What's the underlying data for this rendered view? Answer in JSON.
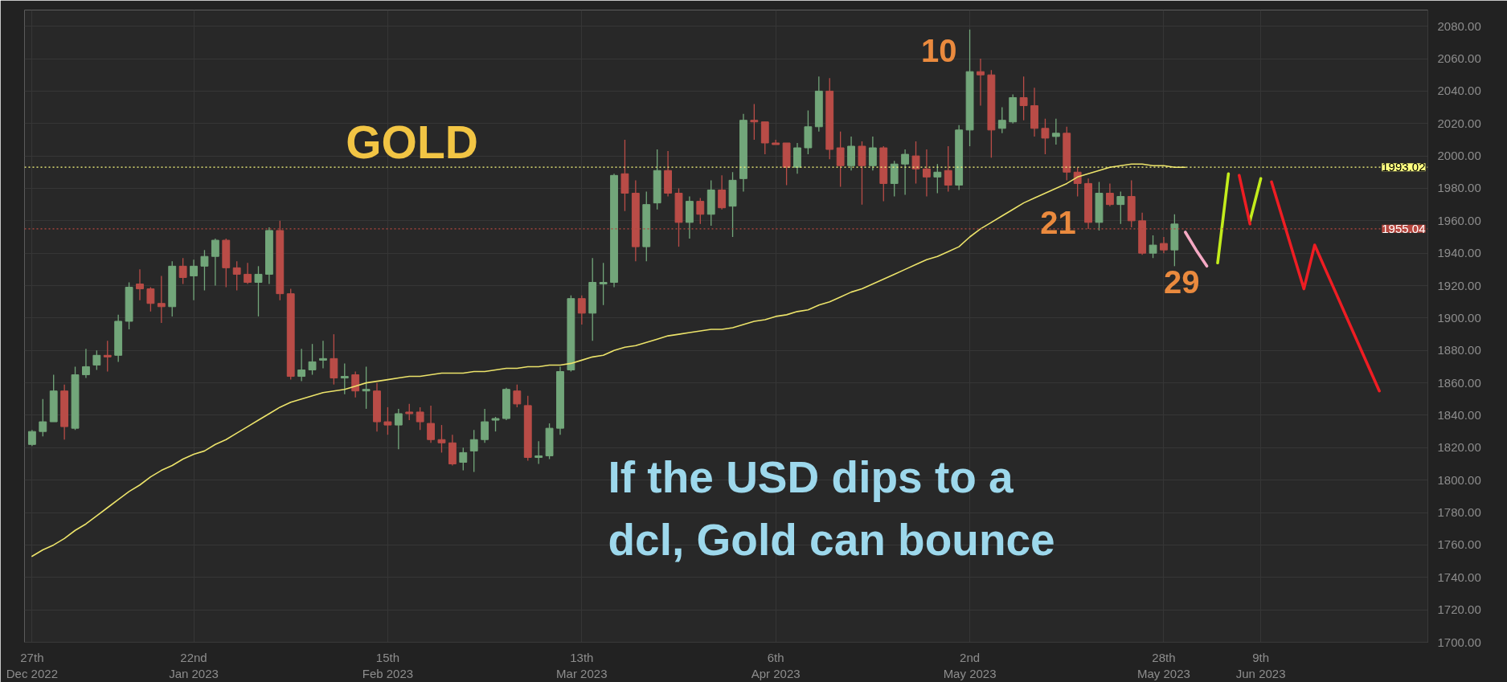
{
  "chart_data": {
    "type": "candlestick",
    "title": "GOLD",
    "categories": [
      "27th\nDec 2022",
      null,
      null,
      null,
      null,
      null,
      null,
      null,
      null,
      null,
      null,
      null,
      null,
      null,
      null,
      "22nd\nJan 2023",
      null,
      null,
      null,
      null,
      null,
      null,
      null,
      null,
      null,
      null,
      null,
      null,
      null,
      null,
      null,
      null,
      null,
      "15th\nFeb 2023",
      null,
      null,
      null,
      null,
      null,
      null,
      null,
      null,
      null,
      null,
      null,
      null,
      null,
      null,
      null,
      null,
      null,
      "13th\nMar 2023",
      null,
      null,
      null,
      null,
      null,
      null,
      null,
      null,
      null,
      null,
      null,
      null,
      null,
      null,
      null,
      null,
      null,
      "6th\nApr 2023",
      null,
      null,
      null,
      null,
      null,
      null,
      null,
      null,
      null,
      null,
      null,
      null,
      null,
      null,
      null,
      null,
      null,
      "2nd\nMay 2023",
      null,
      null,
      null,
      null,
      null,
      null,
      null,
      null,
      null,
      null,
      null,
      null,
      null,
      null,
      null,
      null,
      null,
      "28th\nMay 2023",
      null,
      null,
      null,
      null,
      null,
      null,
      null,
      null,
      "9th\nJun 2023",
      null,
      null,
      null,
      null,
      null,
      null,
      null,
      null,
      null,
      null,
      null,
      null,
      null,
      null,
      null
    ],
    "ohlc": [
      [
        1822,
        1831,
        1821,
        1830
      ],
      [
        1830,
        1850,
        1827,
        1836
      ],
      [
        1836,
        1865,
        1836,
        1855
      ],
      [
        1855,
        1859,
        1825,
        1833
      ],
      [
        1832,
        1870,
        1831,
        1865
      ],
      [
        1865,
        1881,
        1863,
        1870
      ],
      [
        1871,
        1880,
        1868,
        1877
      ],
      [
        1877,
        1886,
        1867,
        1876
      ],
      [
        1877,
        1902,
        1873,
        1898
      ],
      [
        1898,
        1922,
        1893,
        1919
      ],
      [
        1921,
        1930,
        1911,
        1918
      ],
      [
        1918,
        1919,
        1904,
        1909
      ],
      [
        1909,
        1926,
        1897,
        1907
      ],
      [
        1907,
        1935,
        1901,
        1932
      ],
      [
        1932,
        1937,
        1921,
        1925
      ],
      [
        1926,
        1936,
        1911,
        1932
      ],
      [
        1932,
        1942,
        1917,
        1938
      ],
      [
        1938,
        1949,
        1920,
        1948
      ],
      [
        1948,
        1949,
        1919,
        1931
      ],
      [
        1931,
        1935,
        1917,
        1927
      ],
      [
        1927,
        1934,
        1921,
        1922
      ],
      [
        1922,
        1932,
        1901,
        1927
      ],
      [
        1927,
        1956,
        1921,
        1954
      ],
      [
        1954,
        1960,
        1911,
        1915
      ],
      [
        1915,
        1918,
        1862,
        1864
      ],
      [
        1864,
        1881,
        1861,
        1868
      ],
      [
        1868,
        1884,
        1865,
        1873
      ],
      [
        1874,
        1886,
        1869,
        1875
      ],
      [
        1875,
        1890,
        1859,
        1863
      ],
      [
        1863,
        1872,
        1853,
        1864
      ],
      [
        1865,
        1867,
        1851,
        1855
      ],
      [
        1855,
        1870,
        1844,
        1856
      ],
      [
        1855,
        1860,
        1830,
        1836
      ],
      [
        1836,
        1845,
        1828,
        1834
      ],
      [
        1834,
        1844,
        1819,
        1841
      ],
      [
        1842,
        1847,
        1837,
        1841
      ],
      [
        1842,
        1845,
        1831,
        1836
      ],
      [
        1835,
        1846,
        1823,
        1825
      ],
      [
        1825,
        1834,
        1817,
        1823
      ],
      [
        1823,
        1828,
        1809,
        1810
      ],
      [
        1811,
        1820,
        1806,
        1817
      ],
      [
        1818,
        1831,
        1805,
        1825
      ],
      [
        1825,
        1844,
        1823,
        1836
      ],
      [
        1837,
        1839,
        1830,
        1838
      ],
      [
        1838,
        1857,
        1837,
        1856
      ],
      [
        1855,
        1859,
        1845,
        1847
      ],
      [
        1846,
        1852,
        1812,
        1814
      ],
      [
        1814,
        1824,
        1810,
        1815
      ],
      [
        1815,
        1835,
        1813,
        1832
      ],
      [
        1832,
        1870,
        1828,
        1867
      ],
      [
        1868,
        1914,
        1867,
        1912
      ],
      [
        1912,
        1914,
        1896,
        1903
      ],
      [
        1903,
        1937,
        1886,
        1922
      ],
      [
        1921,
        1934,
        1908,
        1922
      ],
      [
        1922,
        1989,
        1919,
        1988
      ],
      [
        1989,
        2010,
        1966,
        1977
      ],
      [
        1977,
        1985,
        1935,
        1944
      ],
      [
        1944,
        1978,
        1935,
        1970
      ],
      [
        1971,
        2004,
        1967,
        1991
      ],
      [
        1991,
        2003,
        1975,
        1977
      ],
      [
        1977,
        1980,
        1944,
        1959
      ],
      [
        1959,
        1975,
        1949,
        1972
      ],
      [
        1972,
        1974,
        1958,
        1964
      ],
      [
        1964,
        1985,
        1957,
        1979
      ],
      [
        1979,
        1988,
        1967,
        1968
      ],
      [
        1969,
        1990,
        1950,
        1985
      ],
      [
        1986,
        2026,
        1978,
        2022
      ],
      [
        2022,
        2032,
        2010,
        2021
      ],
      [
        2021,
        2021,
        2001,
        2008
      ],
      [
        2008,
        2010,
        2007,
        2007
      ],
      [
        2008,
        2008,
        1982,
        1993
      ],
      [
        1993,
        2008,
        1989,
        2005
      ],
      [
        2005,
        2028,
        2001,
        2018
      ],
      [
        2018,
        2049,
        2015,
        2040
      ],
      [
        2040,
        2048,
        1998,
        2004
      ],
      [
        2005,
        2015,
        1981,
        1994
      ],
      [
        1994,
        2012,
        1991,
        2006
      ],
      [
        2006,
        2009,
        1970,
        1994
      ],
      [
        1994,
        2012,
        1991,
        2005
      ],
      [
        2005,
        2006,
        1972,
        1983
      ],
      [
        1983,
        1997,
        1975,
        1995
      ],
      [
        1995,
        2004,
        1976,
        2001
      ],
      [
        2000,
        2009,
        1983,
        1992
      ],
      [
        1992,
        2004,
        1975,
        1987
      ],
      [
        1987,
        1995,
        1977,
        1990
      ],
      [
        1991,
        2006,
        1978,
        1982
      ],
      [
        1982,
        2019,
        1979,
        2016
      ],
      [
        2016,
        2078,
        2006,
        2052
      ],
      [
        2052,
        2060,
        2031,
        2050
      ],
      [
        2050,
        2053,
        1999,
        2016
      ],
      [
        2017,
        2030,
        2014,
        2022
      ],
      [
        2021,
        2038,
        2020,
        2036
      ],
      [
        2036,
        2049,
        2022,
        2031
      ],
      [
        2031,
        2042,
        2012,
        2017
      ],
      [
        2017,
        2023,
        2001,
        2011
      ],
      [
        2012,
        2023,
        2007,
        2014
      ],
      [
        2014,
        2018,
        1985,
        1990
      ],
      [
        1990,
        1993,
        1975,
        1983
      ],
      [
        1983,
        1986,
        1955,
        1959
      ],
      [
        1959,
        1984,
        1954,
        1977
      ],
      [
        1977,
        1983,
        1969,
        1970
      ],
      [
        1970,
        1978,
        1958,
        1975
      ],
      [
        1975,
        1985,
        1956,
        1960
      ],
      [
        1960,
        1965,
        1939,
        1940
      ],
      [
        1940,
        1951,
        1937,
        1945
      ],
      [
        1946,
        1950,
        1940,
        1942
      ],
      [
        1942,
        1964,
        1932,
        1958
      ],
      null,
      null,
      null,
      null,
      null,
      null,
      null,
      null,
      null,
      null,
      null,
      null,
      null,
      null,
      null,
      null,
      null,
      null,
      null,
      null,
      null,
      null,
      null
    ],
    "colors": [
      "#72a67a",
      "#72a67a",
      "#72a67a",
      "#b94c47",
      "#72a67a",
      "#72a67a",
      "#72a67a",
      "#b94c47",
      "#72a67a",
      "#72a67a",
      "#b94c47",
      "#b94c47",
      "#b94c47",
      "#72a67a",
      "#b94c47",
      "#72a67a",
      "#72a67a",
      "#72a67a",
      "#b94c47",
      "#b94c47",
      "#b94c47",
      "#72a67a",
      "#72a67a",
      "#b94c47",
      "#b94c47",
      "#72a67a",
      "#72a67a",
      "#72a67a",
      "#b94c47",
      "#72a67a",
      "#b94c47",
      "#72a67a",
      "#b94c47",
      "#b94c47",
      "#72a67a",
      "#b94c47",
      "#b94c47",
      "#b94c47",
      "#b94c47",
      "#b94c47",
      "#72a67a",
      "#72a67a",
      "#72a67a",
      "#72a67a",
      "#72a67a",
      "#b94c47",
      "#b94c47",
      "#72a67a",
      "#72a67a",
      "#72a67a",
      "#72a67a",
      "#b94c47",
      "#72a67a",
      "#72a67a",
      "#72a67a",
      "#b94c47",
      "#b94c47",
      "#72a67a",
      "#72a67a",
      "#b94c47",
      "#b94c47",
      "#72a67a",
      "#b94c47",
      "#72a67a",
      "#b94c47",
      "#72a67a",
      "#72a67a",
      "#b94c47",
      "#b94c47",
      "#b94c47",
      "#b94c47",
      "#72a67a",
      "#72a67a",
      "#72a67a",
      "#b94c47",
      "#b94c47",
      "#72a67a",
      "#b94c47",
      "#72a67a",
      "#b94c47",
      "#72a67a",
      "#72a67a",
      "#b94c47",
      "#b94c47",
      "#72a67a",
      "#b94c47",
      "#72a67a",
      "#72a67a",
      "#b94c47",
      "#b94c47",
      "#72a67a",
      "#72a67a",
      "#b94c47",
      "#b94c47",
      "#b94c47",
      "#72a67a",
      "#b94c47",
      "#b94c47",
      "#b94c47",
      "#72a67a",
      "#b94c47",
      "#72a67a",
      "#b94c47",
      "#b94c47",
      "#72a67a",
      "#b94c47",
      "#72a67a",
      null,
      null,
      null,
      null,
      null,
      null,
      null,
      null,
      null,
      null,
      null,
      null,
      null,
      null,
      null,
      null,
      null,
      null,
      null,
      null,
      null,
      null,
      null
    ],
    "series": [
      {
        "type": "line",
        "color": "#ece36a",
        "values": [
          1753,
          1757,
          1760,
          1764,
          1769,
          1773,
          1778,
          1783,
          1788,
          1793,
          1797,
          1802,
          1806,
          1809,
          1813,
          1816,
          1818,
          1822,
          1825,
          1829,
          1833,
          1837,
          1841,
          1845,
          1848,
          1850,
          1852,
          1854,
          1855,
          1856,
          1858,
          1860,
          1861,
          1862,
          1863,
          1864,
          1864,
          1865,
          1866,
          1866,
          1866,
          1867,
          1867,
          1868,
          1869,
          1869,
          1870,
          1870,
          1871,
          1871,
          1872,
          1874,
          1876,
          1877,
          1880,
          1882,
          1883,
          1885,
          1887,
          1889,
          1890,
          1891,
          1892,
          1893,
          1893,
          1894,
          1896,
          1898,
          1899,
          1901,
          1902,
          1904,
          1905,
          1908,
          1910,
          1913,
          1916,
          1918,
          1921,
          1924,
          1927,
          1930,
          1933,
          1936,
          1938,
          1941,
          1944,
          1950,
          1955,
          1959,
          1963,
          1967,
          1971,
          1974,
          1977,
          1980,
          1983,
          1987,
          1989,
          1991,
          1993,
          1994,
          1995,
          1995,
          1994,
          1994,
          1993,
          1993,
          null,
          null,
          null,
          null,
          null,
          null,
          null,
          null,
          null,
          null,
          null,
          null,
          null,
          null,
          null,
          null,
          null,
          null,
          null,
          null,
          null,
          null
        ]
      },
      {
        "type": "line",
        "color": "#f5a9c4",
        "values": [
          null,
          null,
          null,
          null,
          null,
          null,
          null,
          null,
          null,
          null,
          null,
          null,
          null,
          null,
          null,
          null,
          null,
          null,
          null,
          null,
          null,
          null,
          null,
          null,
          null,
          null,
          null,
          null,
          null,
          null,
          null,
          null,
          null,
          null,
          null,
          null,
          null,
          null,
          null,
          null,
          null,
          null,
          null,
          null,
          null,
          null,
          null,
          null,
          null,
          null,
          null,
          null,
          null,
          null,
          null,
          null,
          null,
          null,
          null,
          null,
          null,
          null,
          null,
          null,
          null,
          null,
          null,
          null,
          null,
          null,
          null,
          null,
          null,
          null,
          null,
          null,
          null,
          null,
          null,
          null,
          null,
          null,
          null,
          null,
          null,
          null,
          null,
          null,
          null,
          null,
          null,
          null,
          null,
          null,
          null,
          null,
          null,
          null,
          null,
          null,
          null,
          null,
          null,
          null,
          null,
          null,
          null,
          1953,
          1942,
          1932,
          null,
          null,
          null,
          null,
          null,
          null,
          null,
          null,
          null,
          null,
          null,
          null,
          null,
          null,
          null,
          null,
          null,
          null,
          null,
          null
        ]
      },
      {
        "type": "line",
        "color": "#c3ec1c",
        "values": [
          null,
          null,
          null,
          null,
          null,
          null,
          null,
          null,
          null,
          null,
          null,
          null,
          null,
          null,
          null,
          null,
          null,
          null,
          null,
          null,
          null,
          null,
          null,
          null,
          null,
          null,
          null,
          null,
          null,
          null,
          null,
          null,
          null,
          null,
          null,
          null,
          null,
          null,
          null,
          null,
          null,
          null,
          null,
          null,
          null,
          null,
          null,
          null,
          null,
          null,
          null,
          null,
          null,
          null,
          null,
          null,
          null,
          null,
          null,
          null,
          null,
          null,
          null,
          null,
          null,
          null,
          null,
          null,
          null,
          null,
          null,
          null,
          null,
          null,
          null,
          null,
          null,
          null,
          null,
          null,
          null,
          null,
          null,
          null,
          null,
          null,
          null,
          null,
          null,
          null,
          null,
          null,
          null,
          null,
          null,
          null,
          null,
          null,
          null,
          null,
          null,
          null,
          null,
          null,
          null,
          null,
          null,
          null,
          null,
          null,
          1934,
          1989,
          null,
          1960,
          1986,
          null,
          null,
          null,
          null,
          null,
          null,
          null,
          null,
          null,
          null,
          null,
          null,
          null,
          null,
          null
        ]
      },
      {
        "type": "line",
        "color": "#ee1d23",
        "values": [
          null,
          null,
          null,
          null,
          null,
          null,
          null,
          null,
          null,
          null,
          null,
          null,
          null,
          null,
          null,
          null,
          null,
          null,
          null,
          null,
          null,
          null,
          null,
          null,
          null,
          null,
          null,
          null,
          null,
          null,
          null,
          null,
          null,
          null,
          null,
          null,
          null,
          null,
          null,
          null,
          null,
          null,
          null,
          null,
          null,
          null,
          null,
          null,
          null,
          null,
          null,
          null,
          null,
          null,
          null,
          null,
          null,
          null,
          null,
          null,
          null,
          null,
          null,
          null,
          null,
          null,
          null,
          null,
          null,
          null,
          null,
          null,
          null,
          null,
          null,
          null,
          null,
          null,
          null,
          null,
          null,
          null,
          null,
          null,
          null,
          null,
          null,
          null,
          null,
          null,
          null,
          null,
          null,
          null,
          null,
          null,
          null,
          null,
          null,
          null,
          null,
          null,
          null,
          null,
          null,
          null,
          null,
          null,
          null,
          null,
          null,
          null,
          1988,
          1958,
          null,
          1984,
          1962,
          1940,
          1918,
          1945,
          1930,
          1915,
          1900,
          1885,
          1870,
          1855,
          null,
          null,
          null,
          null
        ]
      }
    ],
    "ref_lines": [
      {
        "axis": "y",
        "value": 1993.02,
        "label": "1993.02",
        "color": "#ffff80",
        "line_style": "dotted"
      },
      {
        "axis": "y",
        "value": 1955.04,
        "label": "1955.04",
        "color": "#b5473f",
        "line_style": "dotted"
      }
    ],
    "annotations": [
      "If the USD dips to a dcl, Gold can bounce",
      "10",
      "21",
      "29"
    ],
    "ylim": [
      1700,
      2090
    ],
    "yticks": [
      {
        "value": 1700,
        "label": "1700.00"
      },
      {
        "value": 1720,
        "label": "1720.00"
      },
      {
        "value": 1740,
        "label": "1740.00"
      },
      {
        "value": 1760,
        "label": "1760.00"
      },
      {
        "value": 1780,
        "label": "1780.00"
      },
      {
        "value": 1800,
        "label": "1800.00"
      },
      {
        "value": 1820,
        "label": "1820.00"
      },
      {
        "value": 1840,
        "label": "1840.00"
      },
      {
        "value": 1860,
        "label": "1860.00"
      },
      {
        "value": 1880,
        "label": "1880.00"
      },
      {
        "value": 1900,
        "label": "1900.00"
      },
      {
        "value": 1920,
        "label": "1920.00"
      },
      {
        "value": 1940,
        "label": "1940.00"
      },
      {
        "value": 1960,
        "label": "1960.00"
      },
      {
        "value": 1980,
        "label": "1980.00"
      },
      {
        "value": 2000,
        "label": "2000.00"
      },
      {
        "value": 2020,
        "label": "2020.00"
      },
      {
        "value": 2040,
        "label": "2040.00"
      },
      {
        "value": 2060,
        "label": "2060.00"
      },
      {
        "value": 2080,
        "label": "2080.00"
      }
    ],
    "grid": true
  }
}
